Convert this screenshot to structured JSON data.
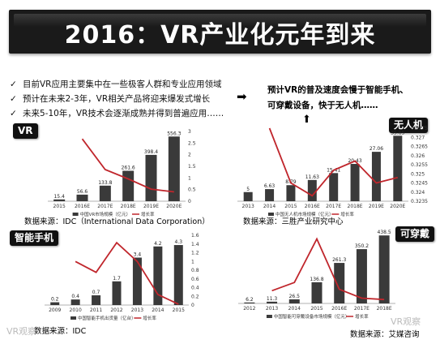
{
  "title": "2016：VR产业化元年到来",
  "bullets": [
    "目前VR应用主要集中在一些极客人群和专业应用领域",
    "预计在未来2-3年，VR相关产品将迎来爆发式增长",
    "未来5-10年，VR技术会逐渐成熟并得到普遍应用……"
  ],
  "callout": {
    "arrow": "➡",
    "line1": "预计VR的普及速度会慢于智能手机、",
    "line2": "可穿戴设备，快于无人机……",
    "up_arrow": "⬆"
  },
  "labels": {
    "vr": "VR",
    "drone": "无人机",
    "phone": "智能手机",
    "wearable": "可穿戴"
  },
  "sources": {
    "vr": "数据来源：IDC（International Data Corporation）",
    "drone": "数据来源：三胜产业研究中心",
    "phone": "数据来源：IDC",
    "wearable": "数据来源：艾媒咨询"
  },
  "watermark_left": "VR观察",
  "watermark_right": "VR观察",
  "colors": {
    "bar": "#3a3a3a",
    "line": "#c0262c",
    "axis": "#999999",
    "label_bg": "#111111"
  },
  "chart_data": [
    {
      "id": "vr",
      "type": "bar",
      "categories": [
        "2015",
        "2016E",
        "2017E",
        "2018E",
        "2019E",
        "2020E"
      ],
      "series": [
        {
          "name": "中国VR市场规模（亿元）",
          "values": [
            15.4,
            56.6,
            133.8,
            261.6,
            398.4,
            556.3
          ]
        },
        {
          "name": "增长率",
          "type": "line",
          "axis": "right",
          "values": [
            null,
            2.68,
            1.36,
            0.96,
            0.52,
            0.4
          ]
        }
      ],
      "labels": [
        "15.4",
        "56.6",
        "133.8",
        "261.6",
        "398.4",
        "556.3"
      ],
      "ylim": [
        0,
        600
      ],
      "y2lim": [
        0,
        3
      ],
      "y2ticks": [
        "0",
        "0.5",
        "1",
        "1.5",
        "2",
        "2.5",
        "3"
      ]
    },
    {
      "id": "drone",
      "type": "bar",
      "categories": [
        "2013",
        "2014",
        "2015",
        "2016E",
        "2017E",
        "2018E",
        "2019E",
        "2020E"
      ],
      "series": [
        {
          "name": "中国无人机市场规模（亿元）",
          "values": [
            5,
            6.63,
            8.79,
            11.63,
            15.41,
            20.43,
            27.06,
            35.85
          ]
        },
        {
          "name": "增长率",
          "type": "line",
          "axis": "right",
          "values": [
            null,
            0.3275,
            0.3245,
            0.3238,
            0.3252,
            0.3257,
            0.3245,
            0.3248
          ]
        }
      ],
      "labels": [
        "5",
        "6.63",
        "8.79",
        "11.63",
        "15.41",
        "20.43",
        "27.06",
        "35.85"
      ],
      "ylim": [
        0,
        40
      ],
      "y2lim": [
        0.3235,
        0.3275
      ],
      "y2ticks": [
        "0.3235",
        "0.324",
        "0.3245",
        "0.325",
        "0.3255",
        "0.326",
        "0.3265",
        "0.327",
        "0.3275"
      ]
    },
    {
      "id": "phone",
      "type": "bar",
      "categories": [
        "2009",
        "2010",
        "2011",
        "2012",
        "2013",
        "2014",
        "2015"
      ],
      "series": [
        {
          "name": "中国智能手机出货量（亿台）",
          "values": [
            0.2,
            0.4,
            0.7,
            1.7,
            3.4,
            4.2,
            4.3
          ]
        },
        {
          "name": "增长率",
          "type": "line",
          "axis": "right",
          "values": [
            null,
            1.0,
            0.75,
            1.43,
            1.0,
            0.24,
            0.02
          ]
        }
      ],
      "labels": [
        "0.2",
        "0.4",
        "0.7",
        "1.7",
        "3.4",
        "4.2",
        "4.3"
      ],
      "ylim": [
        0,
        5
      ],
      "y2lim": [
        0,
        1.6
      ],
      "y2ticks": [
        "0",
        "0.2",
        "0.4",
        "0.6",
        "0.8",
        "1",
        "1.2",
        "1.4",
        "1.6"
      ]
    },
    {
      "id": "wearable",
      "type": "bar",
      "categories": [
        "2012",
        "2013",
        "2014",
        "2015",
        "2016E",
        "2017E",
        "2018E"
      ],
      "series": [
        {
          "name": "中国智能可穿戴设备市场规模（亿元）",
          "values": [
            6.2,
            11.3,
            26.5,
            136.8,
            261.3,
            350.2,
            438.5
          ]
        },
        {
          "name": "增长率",
          "type": "line",
          "axis": "right",
          "values": [
            null,
            0.82,
            1.35,
            4.16,
            0.91,
            0.34,
            0.25
          ]
        }
      ],
      "labels": [
        "6.2",
        "11.3",
        "26.5",
        "136.8",
        "261.3",
        "350.2",
        "438.5"
      ],
      "ylim": [
        0,
        450
      ],
      "y2lim": [
        0,
        4.5
      ],
      "y2ticks": []
    }
  ]
}
